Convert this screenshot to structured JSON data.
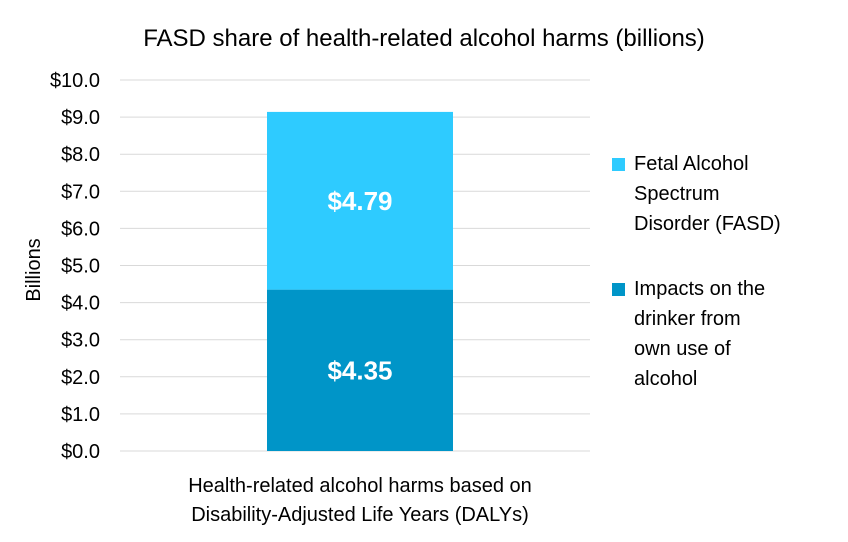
{
  "chart_data": {
    "type": "bar",
    "stacked": true,
    "title": "FASD share of health-related alcohol harms (billions)",
    "ylabel": "Billions",
    "xlabel": "",
    "ylim": [
      0,
      10
    ],
    "ytick_step": 1,
    "ytick_labels": [
      "$0.0",
      "$1.0",
      "$2.0",
      "$3.0",
      "$4.0",
      "$5.0",
      "$6.0",
      "$7.0",
      "$8.0",
      "$9.0",
      "$10.0"
    ],
    "categories": [
      "Health-related alcohol harms based on Disability-Adjusted Life Years (DALYs)"
    ],
    "category_label_lines": [
      "Health-related alcohol harms based on",
      "Disability-Adjusted Life Years (DALYs)"
    ],
    "series": [
      {
        "name": "Impacts on the drinker from own use of alcohol",
        "values": [
          4.35
        ],
        "labels": [
          "$4.35"
        ],
        "color": "#0095C8",
        "legend_lines": [
          "Impacts on the",
          "drinker from",
          "own use of",
          "alcohol"
        ]
      },
      {
        "name": "Fetal Alcohol Spectrum Disorder (FASD)",
        "values": [
          4.79
        ],
        "labels": [
          "$4.79"
        ],
        "color": "#2ECBFF",
        "legend_lines": [
          "Fetal Alcohol",
          "Spectrum",
          "Disorder (FASD)"
        ]
      }
    ],
    "grid": true,
    "legend_position": "right"
  }
}
